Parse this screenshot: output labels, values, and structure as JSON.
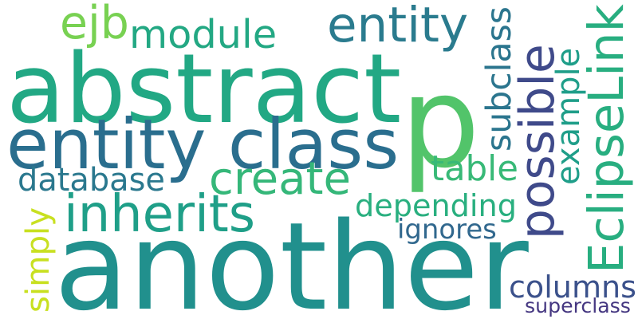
{
  "word_cloud": {
    "words": [
      {
        "text": "p",
        "color": "#52c46a"
      },
      {
        "text": "another",
        "color": "#21908d"
      },
      {
        "text": "abstract",
        "color": "#22a884"
      },
      {
        "text": "entity class",
        "color": "#2a6e8e"
      },
      {
        "text": "entity",
        "color": "#2a7b8e"
      },
      {
        "text": "module",
        "color": "#23a883"
      },
      {
        "text": "ejb",
        "color": "#78d152"
      },
      {
        "text": "create",
        "color": "#35b779"
      },
      {
        "text": "inherits",
        "color": "#1f9f88"
      },
      {
        "text": "database",
        "color": "#2a788e"
      },
      {
        "text": "depending",
        "color": "#29af7f"
      },
      {
        "text": "table",
        "color": "#38b977"
      },
      {
        "text": "ignores",
        "color": "#31688e"
      },
      {
        "text": "columns",
        "color": "#3b518b"
      },
      {
        "text": "superclass",
        "color": "#453781"
      },
      {
        "text": "subclass",
        "color": "#2b758e"
      },
      {
        "text": "possible",
        "color": "#3f4a8a"
      },
      {
        "text": "example",
        "color": "#1f9e89"
      },
      {
        "text": "EclipseLink",
        "color": "#28ae80"
      },
      {
        "text": "simply",
        "color": "#c8e020"
      }
    ]
  }
}
